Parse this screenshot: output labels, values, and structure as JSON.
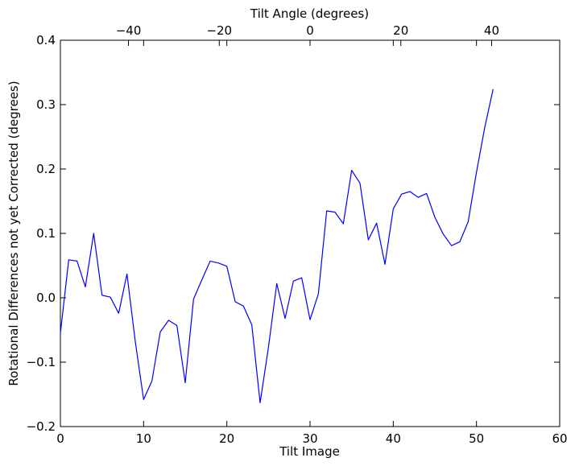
{
  "chart_data": {
    "type": "line",
    "xlabel": "Tilt Image",
    "ylabel": "Rotational Differences not yet Corrected (degrees)",
    "x2label": "Tilt Angle (degrees)",
    "xlim": [
      0,
      60
    ],
    "ylim": [
      -0.2,
      0.4
    ],
    "x2lim": [
      -55,
      55
    ],
    "x_ticks": [
      "0",
      "10",
      "20",
      "30",
      "40",
      "50",
      "60"
    ],
    "y_ticks": [
      "−0.2",
      "−0.1",
      "0.0",
      "0.1",
      "0.2",
      "0.3",
      "0.4"
    ],
    "x2_ticks": [
      "−40",
      "−20",
      "0",
      "20",
      "40"
    ],
    "x2_tick_values": [
      -40,
      -20,
      0,
      20,
      40
    ],
    "grid": false,
    "series": [
      {
        "color": "#0000ff",
        "x": [
          0,
          1,
          2,
          3,
          4,
          5,
          6,
          7,
          8,
          9,
          10,
          11,
          12,
          13,
          14,
          15,
          16,
          17,
          18,
          19,
          20,
          21,
          22,
          23,
          24,
          25,
          26,
          27,
          28,
          29,
          30,
          31,
          32,
          33,
          34,
          35,
          36,
          37,
          38,
          39,
          40,
          41,
          42,
          43,
          44,
          45,
          46,
          47,
          48,
          49,
          50,
          51,
          52
        ],
        "y": [
          -0.055,
          0.059,
          0.057,
          0.017,
          0.1,
          0.004,
          0.001,
          -0.024,
          0.037,
          -0.068,
          -0.158,
          -0.129,
          -0.053,
          -0.035,
          -0.043,
          -0.132,
          -0.002,
          0.028,
          0.057,
          0.054,
          0.049,
          -0.006,
          -0.013,
          -0.042,
          -0.163,
          -0.077,
          0.022,
          -0.032,
          0.026,
          0.031,
          -0.034,
          0.006,
          0.135,
          0.133,
          0.115,
          0.198,
          0.178,
          0.09,
          0.116,
          0.052,
          0.138,
          0.161,
          0.165,
          0.156,
          0.162,
          0.125,
          0.099,
          0.081,
          0.087,
          0.118,
          0.195,
          0.265,
          0.324
        ]
      }
    ]
  }
}
